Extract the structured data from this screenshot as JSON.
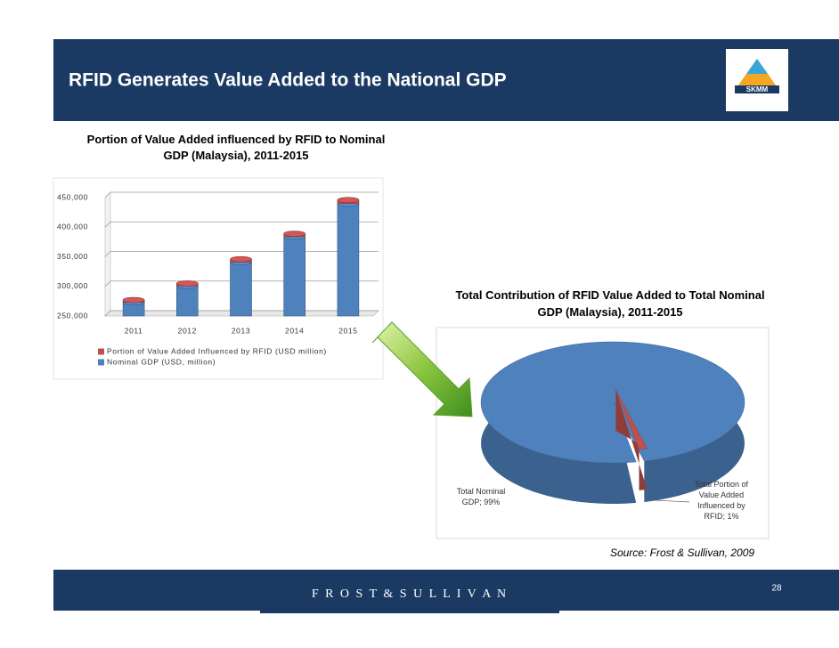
{
  "slide": {
    "title": "RFID Generates Value Added to the National GDP",
    "logo": "SKMM",
    "source": "Source: Frost & Sullivan, 2009",
    "footer": "F R O S T & S U L L I V A N",
    "page_number": "28"
  },
  "chart_data": [
    {
      "type": "bar",
      "title": "Portion of Value Added influenced by RFID to Nominal GDP (Malaysia), 2011-2015",
      "categories": [
        "2011",
        "2012",
        "2013",
        "2014",
        "2015"
      ],
      "series": [
        {
          "name": "Portion of Value Added Influenced by RFID (USD million)",
          "color": "#c0504d",
          "values": [
            4000,
            4000,
            5000,
            5000,
            6000
          ]
        },
        {
          "name": "Nominal GDP (USD, million)",
          "color": "#4f81bd",
          "values": [
            273000,
            301000,
            341000,
            384000,
            440000
          ]
        }
      ],
      "ylim": [
        250000,
        450000
      ],
      "yticks": [
        {
          "value": 250000,
          "label": "250,000"
        },
        {
          "value": 300000,
          "label": "300,000"
        },
        {
          "value": 350000,
          "label": "350,000"
        },
        {
          "value": 400000,
          "label": "400,000"
        },
        {
          "value": 450000,
          "label": "450,000"
        }
      ],
      "grid": true
    },
    {
      "type": "pie",
      "title": "Total Contribution of RFID Value Added to Total Nominal GDP (Malaysia), 2011-2015",
      "values": [
        99,
        1
      ],
      "value_labels": [
        "Total Nominal GDP; 99%",
        "Total Portion of Value Added Influenced by RFID; 1%"
      ],
      "colors": [
        "#4f81bd",
        "#c0504d"
      ]
    }
  ]
}
